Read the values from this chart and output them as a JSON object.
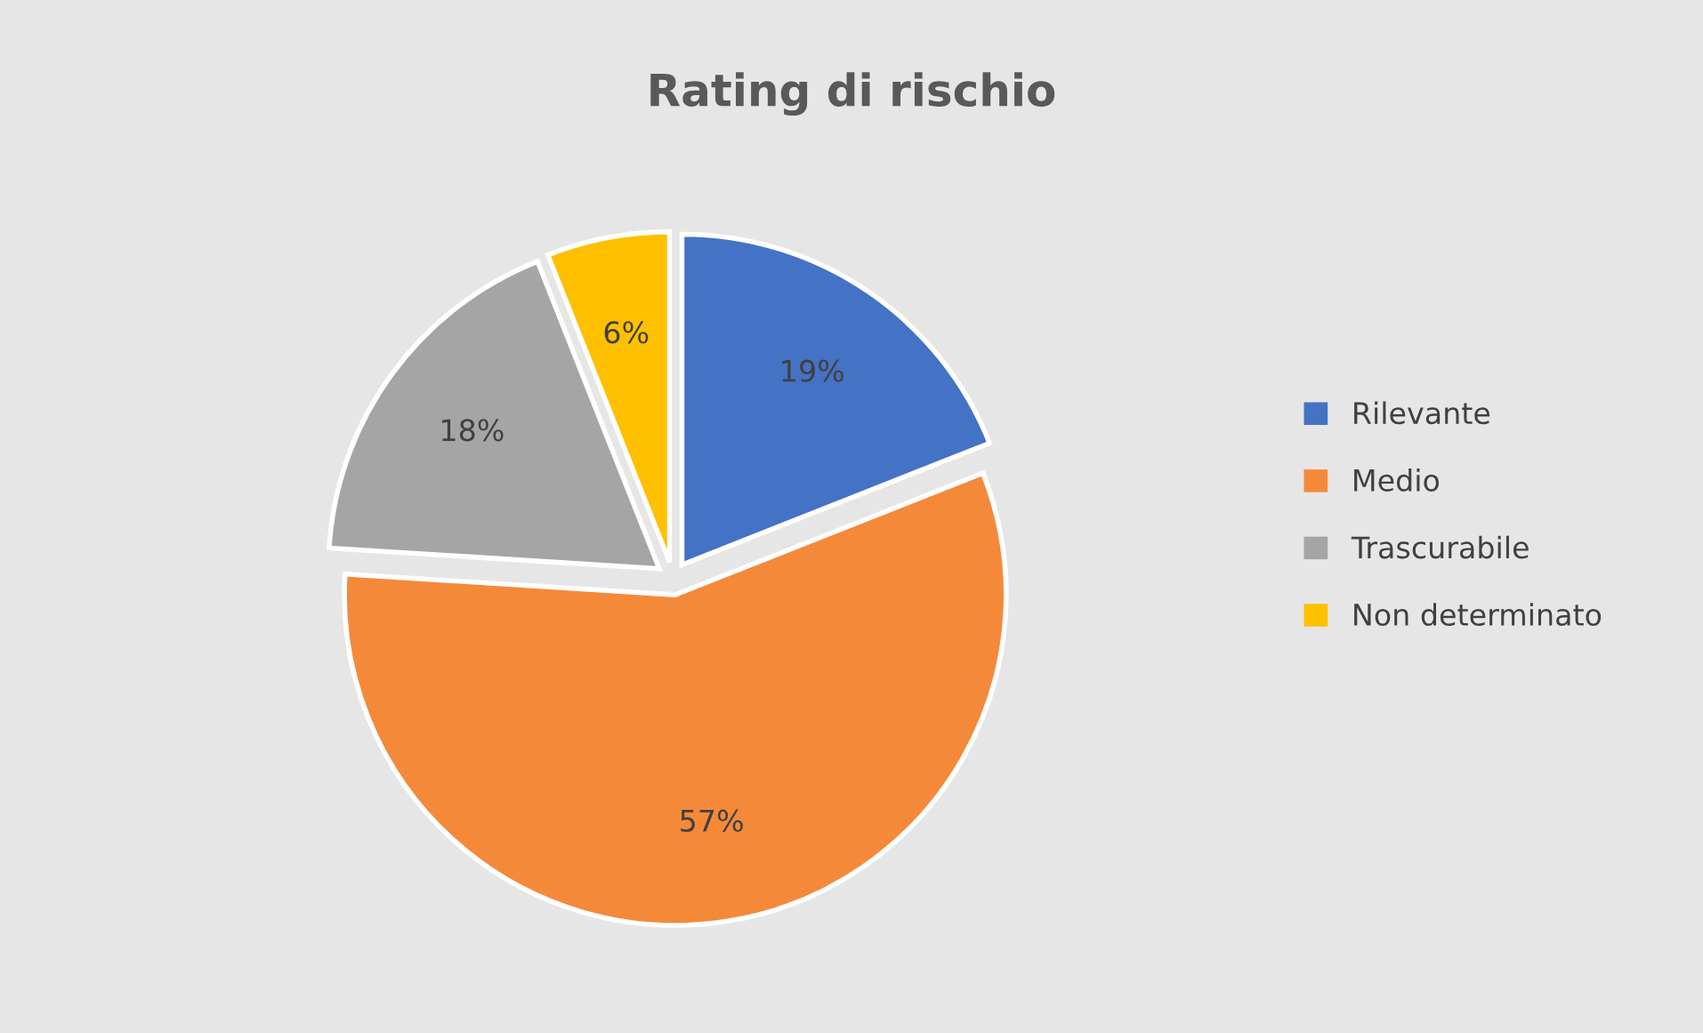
{
  "chart_data": {
    "type": "pie",
    "title": "Rating di rischio",
    "categories": [
      "Rilevante",
      "Medio",
      "Trascurabile",
      "Non determinato"
    ],
    "values": [
      19,
      57,
      18,
      6
    ],
    "colors": [
      "#4472c4",
      "#f4893a",
      "#a5a5a5",
      "#ffc000"
    ],
    "value_labels": [
      "19%",
      "57%",
      "18%",
      "6%"
    ],
    "legend": "right"
  }
}
